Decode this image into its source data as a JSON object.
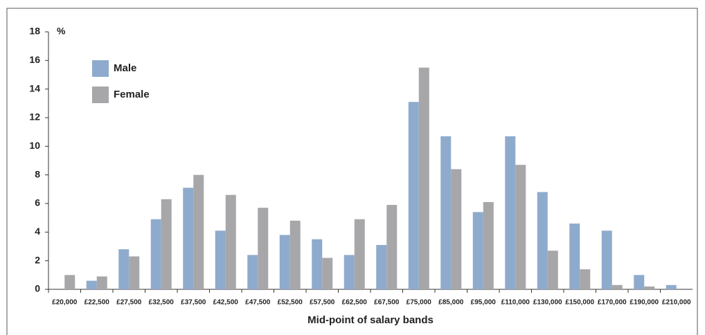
{
  "chart_data": {
    "type": "bar",
    "y_label": "%",
    "x_label": "Mid-point of salary bands",
    "categories": [
      "£20,000",
      "£22,500",
      "£27,500",
      "£32,500",
      "£37,500",
      "£42,500",
      "£47,500",
      "£52,500",
      "£57,500",
      "£62,500",
      "£67,500",
      "£75,000",
      "£85,000",
      "£95,000",
      "£110,000",
      "£130,000",
      "£150,000",
      "£170,000",
      "£190,000",
      "£210,000"
    ],
    "series": [
      {
        "name": "Male",
        "color": "#8eabcd",
        "values": [
          0,
          0.6,
          2.8,
          4.9,
          7.1,
          4.1,
          2.4,
          3.8,
          3.5,
          2.4,
          3.1,
          13.1,
          10.7,
          5.4,
          10.7,
          6.8,
          4.6,
          4.1,
          1.0,
          0.3
        ]
      },
      {
        "name": "Female",
        "color": "#a7a7a9",
        "values": [
          1.0,
          0.9,
          2.3,
          6.3,
          8.0,
          6.6,
          5.7,
          4.8,
          2.2,
          4.9,
          5.9,
          15.5,
          8.4,
          6.1,
          8.7,
          2.7,
          1.4,
          0.3,
          0.2,
          0
        ]
      }
    ],
    "ylim": [
      0,
      18
    ],
    "yticks": [
      0,
      2,
      4,
      6,
      8,
      10,
      12,
      14,
      16,
      18
    ],
    "legend": "upper-left"
  }
}
